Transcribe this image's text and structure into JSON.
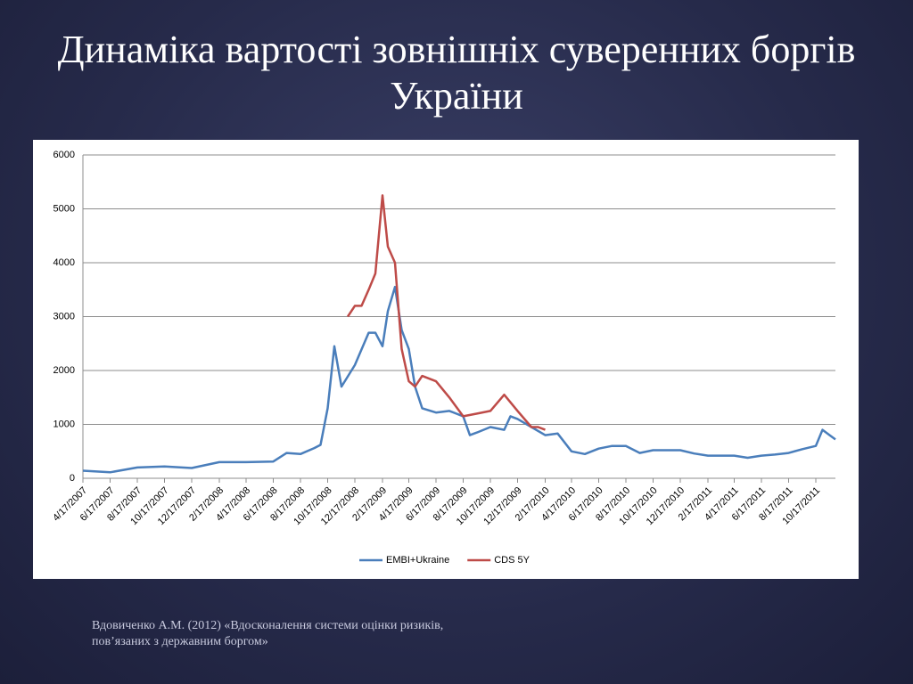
{
  "title": "Динаміка вартості зовнішніх суверенних боргів України",
  "caption": [
    "Вдовиченко А.М. (2012) «Вдосконалення системи оцінки ризиків,",
    "пов’язаних з державним боргом»"
  ],
  "chart_data": {
    "type": "line",
    "series": [
      {
        "name": "EMBI+Ukraine",
        "color": "#4a7ebb",
        "x": [
          "4/17/2007",
          "6/17/2007",
          "8/17/2007",
          "10/17/2007",
          "12/17/2007",
          "2/17/2008",
          "4/17/2008",
          "6/17/2008",
          "7/17/2008",
          "8/17/2008",
          "9/17/2008",
          "10/1/2008",
          "10/17/2008",
          "11/1/2008",
          "11/17/2008",
          "12/17/2008",
          "1/17/2009",
          "2/1/2009",
          "2/17/2009",
          "3/1/2009",
          "3/17/2009",
          "4/1/2009",
          "4/17/2009",
          "5/1/2009",
          "5/17/2009",
          "6/17/2009",
          "7/17/2009",
          "8/17/2009",
          "9/1/2009",
          "9/17/2009",
          "10/17/2009",
          "11/17/2009",
          "12/1/2009",
          "12/17/2009",
          "1/17/2010",
          "2/17/2010",
          "3/17/2010",
          "4/17/2010",
          "5/17/2010",
          "6/17/2010",
          "7/17/2010",
          "8/17/2010",
          "9/17/2010",
          "10/17/2010",
          "11/17/2010",
          "12/17/2010",
          "1/17/2011",
          "2/17/2011",
          "3/17/2011",
          "4/17/2011",
          "5/17/2011",
          "6/17/2011",
          "7/17/2011",
          "8/17/2011",
          "9/17/2011",
          "10/17/2011",
          "11/1/2011",
          "11/17/2011",
          "11/30/2011"
        ],
        "values": [
          140,
          110,
          200,
          220,
          190,
          300,
          300,
          310,
          470,
          450,
          560,
          620,
          1300,
          2450,
          1700,
          2100,
          2700,
          2700,
          2450,
          3100,
          3550,
          2750,
          2400,
          1700,
          1300,
          1220,
          1250,
          1150,
          800,
          850,
          950,
          900,
          1150,
          1100,
          950,
          800,
          830,
          500,
          450,
          550,
          600,
          600,
          470,
          520,
          520,
          520,
          460,
          420,
          420,
          420,
          380,
          420,
          440,
          470,
          540,
          600,
          900,
          800,
          720
        ]
      },
      {
        "name": "CDS 5Y",
        "color": "#be4b48",
        "x": [
          "12/1/2008",
          "12/17/2008",
          "1/1/2009",
          "1/17/2009",
          "2/1/2009",
          "2/17/2009",
          "3/1/2009",
          "3/17/2009",
          "4/1/2009",
          "4/17/2009",
          "5/1/2009",
          "5/17/2009",
          "6/17/2009",
          "7/17/2009",
          "8/17/2009",
          "9/17/2009",
          "10/17/2009",
          "11/17/2009",
          "12/17/2009",
          "1/17/2010",
          "2/1/2010",
          "2/17/2010"
        ],
        "values": [
          3000,
          3200,
          3200,
          3500,
          3800,
          5250,
          4300,
          4000,
          2400,
          1800,
          1700,
          1900,
          1800,
          1500,
          1150,
          1200,
          1250,
          1550,
          1250,
          950,
          950,
          900
        ]
      }
    ],
    "xlim": [
      "4/17/2007",
      "11/30/2011"
    ],
    "xticks": [
      "4/17/2007",
      "6/17/2007",
      "8/17/2007",
      "10/17/2007",
      "12/17/2007",
      "2/17/2008",
      "4/17/2008",
      "6/17/2008",
      "8/17/2008",
      "10/17/2008",
      "12/17/2008",
      "2/17/2009",
      "4/17/2009",
      "6/17/2009",
      "8/17/2009",
      "10/17/2009",
      "12/17/2009",
      "2/17/2010",
      "4/17/2010",
      "6/17/2010",
      "8/17/2010",
      "10/17/2010",
      "12/17/2010",
      "2/17/2011",
      "4/17/2011",
      "6/17/2011",
      "8/17/2011",
      "10/17/2011"
    ],
    "ylim": [
      0,
      6000
    ],
    "yticks": [
      0,
      1000,
      2000,
      3000,
      4000,
      5000,
      6000
    ],
    "grid": true,
    "legend": "bottom"
  }
}
